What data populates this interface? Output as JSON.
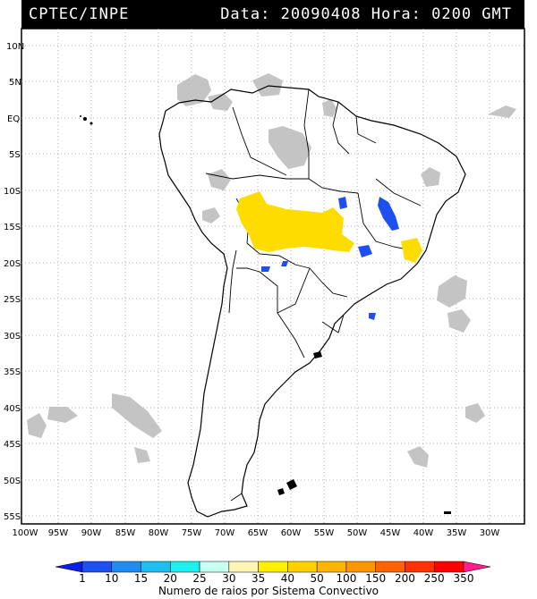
{
  "header": {
    "left": "CPTEC/INPE",
    "right": "Data: 20090408 Hora: 0200 GMT"
  },
  "axes": {
    "lat_labels": [
      "10N",
      "5N",
      "EQ",
      "5S",
      "10S",
      "15S",
      "20S",
      "25S",
      "30S",
      "35S",
      "40S",
      "45S",
      "50S",
      "55S"
    ],
    "lon_labels": [
      "100W",
      "95W",
      "90W",
      "85W",
      "80W",
      "75W",
      "70W",
      "65W",
      "60W",
      "55W",
      "50W",
      "45W",
      "40W",
      "35W",
      "30W"
    ]
  },
  "legend": {
    "values": [
      "1",
      "10",
      "15",
      "20",
      "25",
      "30",
      "35",
      "40",
      "50",
      "100",
      "150",
      "200",
      "250",
      "350"
    ],
    "colors": [
      "#0a1ee6",
      "#1e50f0",
      "#1e8cf0",
      "#1ebef0",
      "#1ef0f0",
      "#c8fff0",
      "#fff5b4",
      "#fff000",
      "#ffd200",
      "#ffb400",
      "#ff9600",
      "#ff6400",
      "#ff3200",
      "#ff0000",
      "#ff1e8c"
    ],
    "caption": "Numero de raios por Sistema Convectivo"
  },
  "colors": {
    "cloud": "#c4c4c4",
    "yellow": "#ffdc00",
    "blue": "#1e50f0",
    "grid": "#999999"
  }
}
